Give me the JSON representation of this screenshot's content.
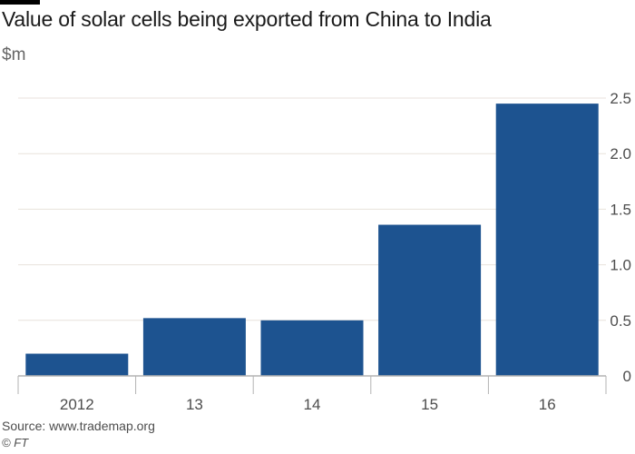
{
  "chart_data": {
    "type": "bar",
    "title": "Value of solar cells being exported from China to India",
    "subtitle": "$m",
    "categories": [
      "2012",
      "13",
      "14",
      "15",
      "16"
    ],
    "values": [
      0.2,
      0.52,
      0.5,
      1.36,
      2.45
    ],
    "ylim": [
      0,
      2.5
    ],
    "yticks": [
      "0",
      "0.5",
      "1.0",
      "1.5",
      "2.0",
      "2.5"
    ],
    "ytick_values": [
      0,
      0.5,
      1.0,
      1.5,
      2.0,
      2.5
    ],
    "y_axis_side": "right",
    "grid": true,
    "bar_color": "#1d5390",
    "grid_color": "#e8e2dc",
    "axis_color": "#b3b3b3"
  },
  "footer": {
    "source": "Source: www.trademap.org",
    "copyright": "© FT"
  }
}
